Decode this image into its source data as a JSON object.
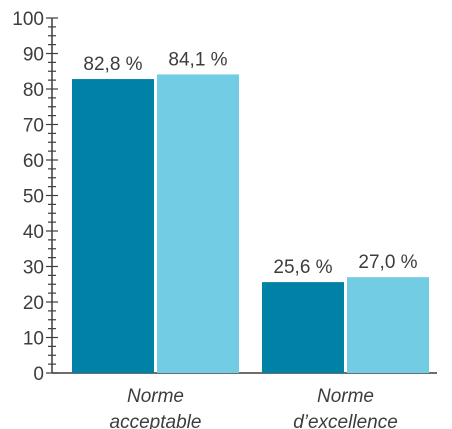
{
  "chart_data": {
    "type": "bar",
    "categories": [
      [
        "Norme",
        "acceptable"
      ],
      [
        "Norme",
        "d’excellence"
      ]
    ],
    "series": [
      {
        "values": [
          82.8,
          25.6
        ],
        "labels": [
          "82,8 %",
          "25,6 %"
        ],
        "color": "#0082a6"
      },
      {
        "values": [
          84.1,
          27.0
        ],
        "labels": [
          "84,1 %",
          "27,0 %"
        ],
        "color": "#72cce3"
      }
    ],
    "ylim": [
      0,
      100
    ],
    "y_ticks": [
      "0",
      "10",
      "20",
      "30",
      "40",
      "50",
      "60",
      "70",
      "80",
      "90",
      "100"
    ],
    "minor_tick_step": 2.5,
    "grid": false,
    "axis_color": "#3d3d3d"
  }
}
